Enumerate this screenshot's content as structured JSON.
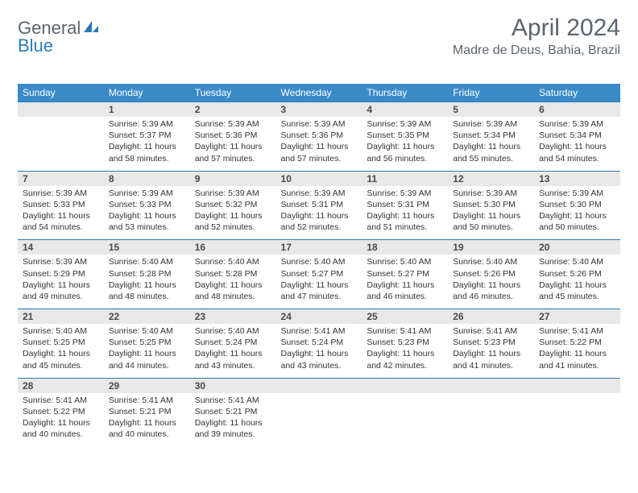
{
  "brand": {
    "text1": "General",
    "text2": "Blue"
  },
  "title": "April 2024",
  "location": "Madre de Deus, Bahia, Brazil",
  "colors": {
    "header_bg": "#3a8ac8",
    "header_text": "#ffffff",
    "daynum_bg": "#e8e8e8",
    "row_divider": "#2a7ab8",
    "body_text": "#333333",
    "title_text": "#5a6570",
    "brand_gray": "#5a6570",
    "brand_blue": "#2a7ab8"
  },
  "day_headers": [
    "Sunday",
    "Monday",
    "Tuesday",
    "Wednesday",
    "Thursday",
    "Friday",
    "Saturday"
  ],
  "weeks": [
    [
      null,
      {
        "n": "1",
        "sr": "5:39 AM",
        "ss": "5:37 PM",
        "dl": "11 hours and 58 minutes."
      },
      {
        "n": "2",
        "sr": "5:39 AM",
        "ss": "5:36 PM",
        "dl": "11 hours and 57 minutes."
      },
      {
        "n": "3",
        "sr": "5:39 AM",
        "ss": "5:36 PM",
        "dl": "11 hours and 57 minutes."
      },
      {
        "n": "4",
        "sr": "5:39 AM",
        "ss": "5:35 PM",
        "dl": "11 hours and 56 minutes."
      },
      {
        "n": "5",
        "sr": "5:39 AM",
        "ss": "5:34 PM",
        "dl": "11 hours and 55 minutes."
      },
      {
        "n": "6",
        "sr": "5:39 AM",
        "ss": "5:34 PM",
        "dl": "11 hours and 54 minutes."
      }
    ],
    [
      {
        "n": "7",
        "sr": "5:39 AM",
        "ss": "5:33 PM",
        "dl": "11 hours and 54 minutes."
      },
      {
        "n": "8",
        "sr": "5:39 AM",
        "ss": "5:33 PM",
        "dl": "11 hours and 53 minutes."
      },
      {
        "n": "9",
        "sr": "5:39 AM",
        "ss": "5:32 PM",
        "dl": "11 hours and 52 minutes."
      },
      {
        "n": "10",
        "sr": "5:39 AM",
        "ss": "5:31 PM",
        "dl": "11 hours and 52 minutes."
      },
      {
        "n": "11",
        "sr": "5:39 AM",
        "ss": "5:31 PM",
        "dl": "11 hours and 51 minutes."
      },
      {
        "n": "12",
        "sr": "5:39 AM",
        "ss": "5:30 PM",
        "dl": "11 hours and 50 minutes."
      },
      {
        "n": "13",
        "sr": "5:39 AM",
        "ss": "5:30 PM",
        "dl": "11 hours and 50 minutes."
      }
    ],
    [
      {
        "n": "14",
        "sr": "5:39 AM",
        "ss": "5:29 PM",
        "dl": "11 hours and 49 minutes."
      },
      {
        "n": "15",
        "sr": "5:40 AM",
        "ss": "5:28 PM",
        "dl": "11 hours and 48 minutes."
      },
      {
        "n": "16",
        "sr": "5:40 AM",
        "ss": "5:28 PM",
        "dl": "11 hours and 48 minutes."
      },
      {
        "n": "17",
        "sr": "5:40 AM",
        "ss": "5:27 PM",
        "dl": "11 hours and 47 minutes."
      },
      {
        "n": "18",
        "sr": "5:40 AM",
        "ss": "5:27 PM",
        "dl": "11 hours and 46 minutes."
      },
      {
        "n": "19",
        "sr": "5:40 AM",
        "ss": "5:26 PM",
        "dl": "11 hours and 46 minutes."
      },
      {
        "n": "20",
        "sr": "5:40 AM",
        "ss": "5:26 PM",
        "dl": "11 hours and 45 minutes."
      }
    ],
    [
      {
        "n": "21",
        "sr": "5:40 AM",
        "ss": "5:25 PM",
        "dl": "11 hours and 45 minutes."
      },
      {
        "n": "22",
        "sr": "5:40 AM",
        "ss": "5:25 PM",
        "dl": "11 hours and 44 minutes."
      },
      {
        "n": "23",
        "sr": "5:40 AM",
        "ss": "5:24 PM",
        "dl": "11 hours and 43 minutes."
      },
      {
        "n": "24",
        "sr": "5:41 AM",
        "ss": "5:24 PM",
        "dl": "11 hours and 43 minutes."
      },
      {
        "n": "25",
        "sr": "5:41 AM",
        "ss": "5:23 PM",
        "dl": "11 hours and 42 minutes."
      },
      {
        "n": "26",
        "sr": "5:41 AM",
        "ss": "5:23 PM",
        "dl": "11 hours and 41 minutes."
      },
      {
        "n": "27",
        "sr": "5:41 AM",
        "ss": "5:22 PM",
        "dl": "11 hours and 41 minutes."
      }
    ],
    [
      {
        "n": "28",
        "sr": "5:41 AM",
        "ss": "5:22 PM",
        "dl": "11 hours and 40 minutes."
      },
      {
        "n": "29",
        "sr": "5:41 AM",
        "ss": "5:21 PM",
        "dl": "11 hours and 40 minutes."
      },
      {
        "n": "30",
        "sr": "5:41 AM",
        "ss": "5:21 PM",
        "dl": "11 hours and 39 minutes."
      },
      null,
      null,
      null,
      null
    ]
  ],
  "labels": {
    "sunrise": "Sunrise:",
    "sunset": "Sunset:",
    "daylight": "Daylight:"
  }
}
